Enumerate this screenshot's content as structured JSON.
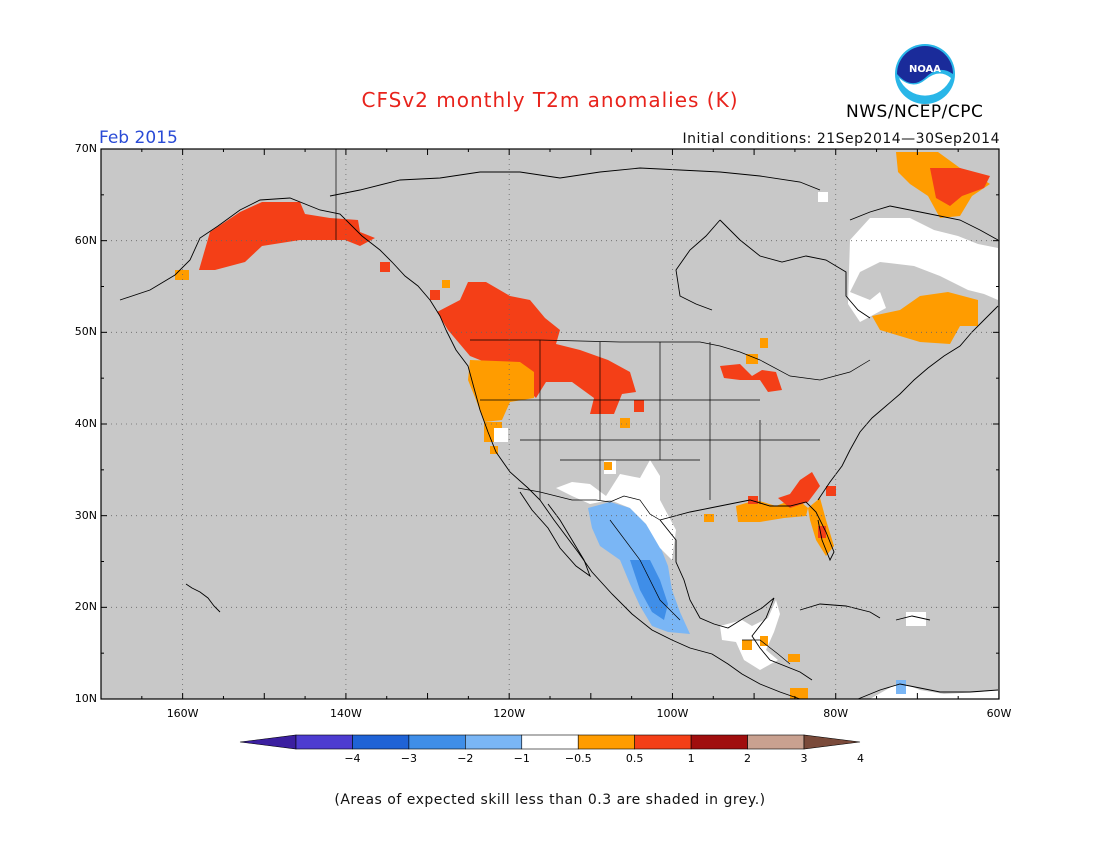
{
  "title": "CFSv2 monthly T2m anomalies (K)",
  "month": "Feb 2015",
  "initial_conditions": "Initial conditions: 21Sep2014—30Sep2014",
  "agency": "NWS/NCEP/CPC",
  "logo_text": "NOAA",
  "footnote": "(Areas of expected skill less than 0.3 are shaded in grey.)",
  "lat_ticks": [
    "70N",
    "60N",
    "50N",
    "40N",
    "30N",
    "20N",
    "10N"
  ],
  "lon_ticks": [
    "160W",
    "140W",
    "120W",
    "100W",
    "80W",
    "60W"
  ],
  "colorbar": {
    "labels": [
      "−4",
      "−3",
      "−2",
      "−1",
      "−0.5",
      "0.5",
      "1",
      "2",
      "3",
      "4"
    ],
    "colors": [
      "#3b1fa0",
      "#4d3cd0",
      "#1f63d6",
      "#3f8ee8",
      "#7ab6f5",
      "#ffffff",
      "#ff9c00",
      "#f43f17",
      "#a00e0e",
      "#c9a190",
      "#7a4a3a"
    ]
  },
  "map": {
    "background_color": "#c8c8c8",
    "lat_range": [
      10,
      70
    ],
    "lon_range": [
      -170,
      -60
    ]
  }
}
